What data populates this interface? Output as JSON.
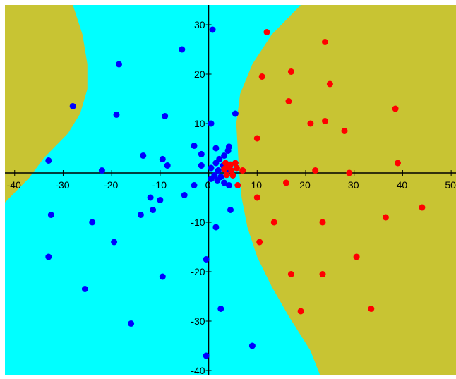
{
  "colors": {
    "background": "#ffffff",
    "region_left": "#00ffff",
    "region_right": "#c8c433",
    "class_blue": "#0000ff",
    "class_red": "#ff0000",
    "axis": "#000000"
  },
  "chart_data": {
    "type": "scatter",
    "title": "",
    "xlabel": "",
    "ylabel": "",
    "xlim": [
      -42,
      51
    ],
    "ylim": [
      -41,
      34
    ],
    "grid": false,
    "legend": "none",
    "x_ticks": [
      -40,
      -30,
      -20,
      -10,
      0,
      10,
      20,
      30,
      40,
      50
    ],
    "y_ticks": [
      -40,
      -30,
      -20,
      -10,
      10,
      20,
      30
    ],
    "x_tick_labels": [
      "-40",
      "-30",
      "-20",
      "-10",
      "0",
      "10",
      "20",
      "30",
      "40",
      "50"
    ],
    "y_tick_labels": [
      "-40",
      "-30",
      "-20",
      "-10",
      "10",
      "20",
      "30"
    ],
    "decision_boundary": {
      "right_region_edge": [
        [
          19,
          34
        ],
        [
          13,
          28
        ],
        [
          9,
          22
        ],
        [
          6.5,
          16
        ],
        [
          5.7,
          10
        ],
        [
          6,
          5
        ],
        [
          6.3,
          0
        ],
        [
          6.8,
          -5
        ],
        [
          8,
          -11
        ],
        [
          10,
          -17
        ],
        [
          13,
          -23
        ],
        [
          16.5,
          -29
        ],
        [
          21,
          -36
        ],
        [
          23,
          -41
        ]
      ],
      "left_region_edge": [
        [
          -42,
          34
        ],
        [
          -28,
          34
        ],
        [
          -26,
          28
        ],
        [
          -25,
          22
        ],
        [
          -25,
          17
        ],
        [
          -26.5,
          12
        ],
        [
          -29,
          8
        ],
        [
          -34,
          3
        ],
        [
          -37,
          -1
        ],
        [
          -42,
          -6
        ]
      ]
    },
    "series": [
      {
        "points": [
          [
            0.8,
            29
          ],
          [
            -5.5,
            25
          ],
          [
            -18.5,
            22
          ],
          [
            -28,
            13.5
          ],
          [
            -19,
            11.8
          ],
          [
            -9,
            11.5
          ],
          [
            5.5,
            12
          ],
          [
            -3,
            5.5
          ],
          [
            0.5,
            10
          ],
          [
            -13.5,
            3.5
          ],
          [
            -9.5,
            2.8
          ],
          [
            -8.5,
            1.5
          ],
          [
            -1.5,
            3.8
          ],
          [
            1.5,
            5
          ],
          [
            -33,
            2.5
          ],
          [
            -22,
            0.5
          ],
          [
            -32.5,
            -8.5
          ],
          [
            -24,
            -10
          ],
          [
            -19.5,
            -14
          ],
          [
            -14,
            -8.5
          ],
          [
            -12,
            -5
          ],
          [
            -11.5,
            -7.5
          ],
          [
            -10,
            -5.5
          ],
          [
            -5,
            -4.5
          ],
          [
            -3,
            -2.5
          ],
          [
            -0.5,
            -17.5
          ],
          [
            4.5,
            -7.5
          ],
          [
            1.5,
            -11
          ],
          [
            -33,
            -17
          ],
          [
            -25.5,
            -23.5
          ],
          [
            -9.5,
            -21
          ],
          [
            -16,
            -30.5
          ],
          [
            2.5,
            -27.5
          ],
          [
            9,
            -35
          ],
          [
            -0.5,
            -37
          ],
          [
            -1.5,
            1.5
          ],
          [
            0.5,
            1
          ],
          [
            1.5,
            2
          ],
          [
            2.2,
            2.8
          ],
          [
            3.2,
            3.5
          ],
          [
            4,
            4.5
          ],
          [
            4.2,
            5.3
          ],
          [
            2,
            0.5
          ],
          [
            3,
            1.5
          ],
          [
            3.8,
            0.5
          ],
          [
            1.2,
            -0.5
          ],
          [
            2.5,
            -0.8
          ],
          [
            1.8,
            -1.5
          ],
          [
            3.2,
            -2
          ],
          [
            4.2,
            -2.5
          ],
          [
            0.5,
            -1.2
          ]
        ]
      },
      {
        "points": [
          [
            12,
            28.5
          ],
          [
            24,
            26.5
          ],
          [
            17,
            20.5
          ],
          [
            11,
            19.5
          ],
          [
            25,
            18
          ],
          [
            16.5,
            14.5
          ],
          [
            38.5,
            13
          ],
          [
            24,
            10.5
          ],
          [
            21,
            10
          ],
          [
            28,
            8.5
          ],
          [
            10,
            7
          ],
          [
            39,
            2
          ],
          [
            7,
            0.5
          ],
          [
            22,
            0.5
          ],
          [
            29,
            0
          ],
          [
            16,
            -2
          ],
          [
            36.5,
            -9
          ],
          [
            44,
            -7
          ],
          [
            10,
            -5
          ],
          [
            13.5,
            -10
          ],
          [
            23.5,
            -10
          ],
          [
            10.5,
            -14
          ],
          [
            30.5,
            -17
          ],
          [
            17,
            -20.5
          ],
          [
            23.5,
            -20.5
          ],
          [
            19,
            -28
          ],
          [
            33.5,
            -27.5
          ],
          [
            3.5,
            2
          ],
          [
            4,
            1.2
          ],
          [
            3.2,
            0.8
          ],
          [
            4.7,
            0.5
          ],
          [
            5.5,
            2
          ],
          [
            5,
            -0.5
          ],
          [
            6,
            -2.5
          ],
          [
            3.7,
            -0.4
          ],
          [
            5.8,
            1
          ],
          [
            4.5,
            1.7
          ]
        ]
      }
    ]
  }
}
